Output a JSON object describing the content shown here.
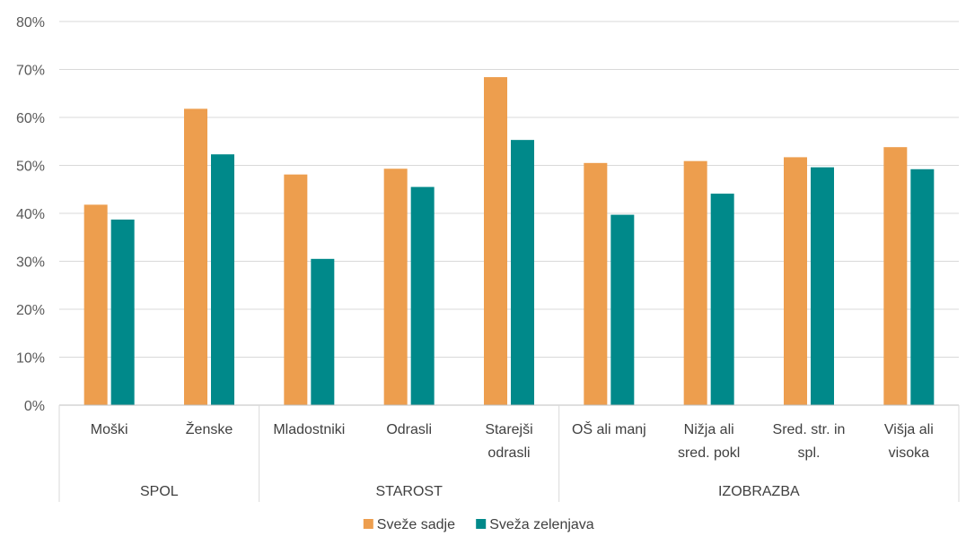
{
  "chart_data": {
    "type": "bar",
    "y_ticks": [
      "0%",
      "10%",
      "20%",
      "30%",
      "40%",
      "50%",
      "60%",
      "70%",
      "80%"
    ],
    "ylim": [
      0,
      80
    ],
    "grid": true,
    "legend_position": "bottom",
    "groups": [
      {
        "label": "SPOL",
        "categories": [
          [
            "Moški"
          ],
          [
            "Ženske"
          ]
        ]
      },
      {
        "label": "STAROST",
        "categories": [
          [
            "Mladostniki"
          ],
          [
            "Odrasli"
          ],
          [
            "Starejši",
            "odrasli"
          ]
        ]
      },
      {
        "label": "IZOBRAZBA",
        "categories": [
          [
            "OŠ ali manj"
          ],
          [
            "Nižja ali",
            "sred. pokl"
          ],
          [
            "Sred. str. in",
            "spl."
          ],
          [
            "Višja ali",
            "visoka"
          ]
        ]
      }
    ],
    "series": [
      {
        "name": "Sveže sadje",
        "color": "#ED9E4E",
        "values": [
          41.8,
          61.8,
          48.1,
          49.3,
          68.4,
          50.5,
          50.9,
          51.7,
          53.8
        ]
      },
      {
        "name": "Sveža zelenjava",
        "color": "#00898A",
        "values": [
          38.7,
          52.3,
          30.5,
          45.5,
          55.3,
          39.7,
          44.1,
          49.6,
          49.2
        ]
      }
    ]
  }
}
